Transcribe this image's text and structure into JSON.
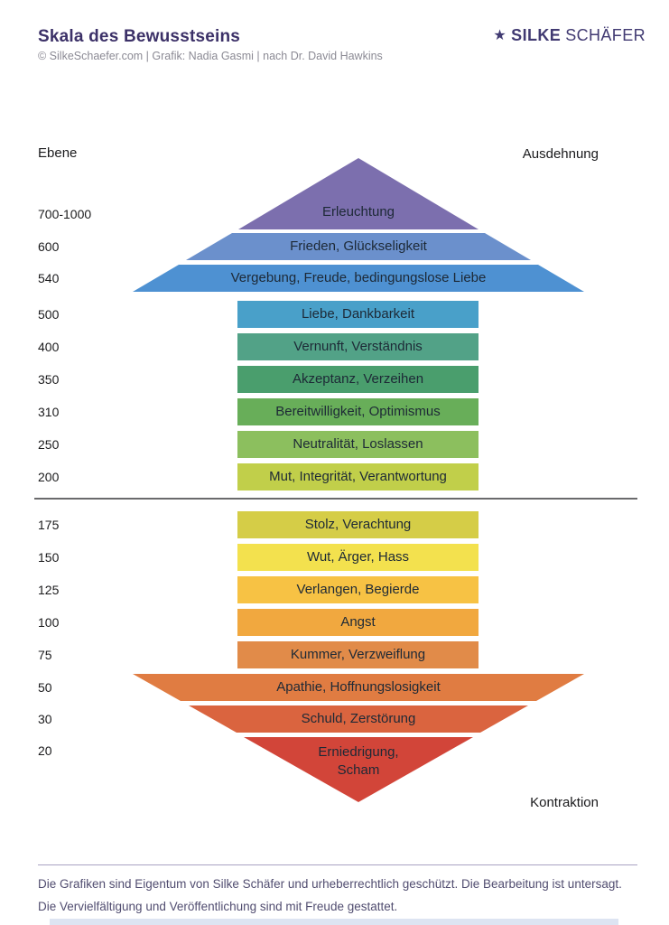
{
  "header": {
    "title": "Skala des Bewusstseins",
    "credit": "© SilkeSchaefer.com | Grafik: Nadia Gasmi | nach Dr. David Hawkins",
    "logo": {
      "star": "★",
      "first": "SILKE",
      "last": "SCHÄFER"
    }
  },
  "axis": {
    "left_label": "Ebene",
    "expansion_label": "Ausdehnung",
    "contraction_label": "Kontraktion"
  },
  "levels": [
    {
      "value": "700-1000",
      "label": "Erleuchtung",
      "color": "#7c6fae"
    },
    {
      "value": "600",
      "label": "Frieden, Glückseligkeit",
      "color": "#6b90cc"
    },
    {
      "value": "540",
      "label": "Vergebung, Freude, bedingungslose Liebe",
      "color": "#4e91d2"
    },
    {
      "value": "500",
      "label": "Liebe, Dankbarkeit",
      "color": "#49a0c9"
    },
    {
      "value": "400",
      "label": "Vernunft, Verständnis",
      "color": "#52a287"
    },
    {
      "value": "350",
      "label": "Akzeptanz, Verzeihen",
      "color": "#4a9e6d"
    },
    {
      "value": "310",
      "label": "Bereitwilligkeit, Optimismus",
      "color": "#68ae59"
    },
    {
      "value": "250",
      "label": "Neutralität, Loslassen",
      "color": "#8cbf5e"
    },
    {
      "value": "200",
      "label": "Mut, Integrität, Verantwortung",
      "color": "#c1cf4a"
    },
    {
      "value": "175",
      "label": "Stolz, Verachtung",
      "color": "#d5cd47"
    },
    {
      "value": "150",
      "label": "Wut, Ärger, Hass",
      "color": "#f3e14e"
    },
    {
      "value": "125",
      "label": "Verlangen, Begierde",
      "color": "#f7c244"
    },
    {
      "value": "100",
      "label": "Angst",
      "color": "#f1a83f"
    },
    {
      "value": "75",
      "label": "Kummer, Verzweiflung",
      "color": "#e18b49"
    },
    {
      "value": "50",
      "label": "Apathie, Hoffnungslosigkeit",
      "color": "#e07c42"
    },
    {
      "value": "30",
      "label": "Schuld, Zerstörung",
      "color": "#da643f"
    },
    {
      "value": "20",
      "label": "Erniedrigung,\nScham",
      "color": "#d24539"
    }
  ],
  "footer": {
    "line1": "Die Grafiken sind Eigentum von Silke Schäfer und urheberrechtlich geschützt. Die Bearbeitung ist untersagt.",
    "line2": "Die Vervielfältigung und Veröffentlichung sind mit Freude gestattet."
  }
}
